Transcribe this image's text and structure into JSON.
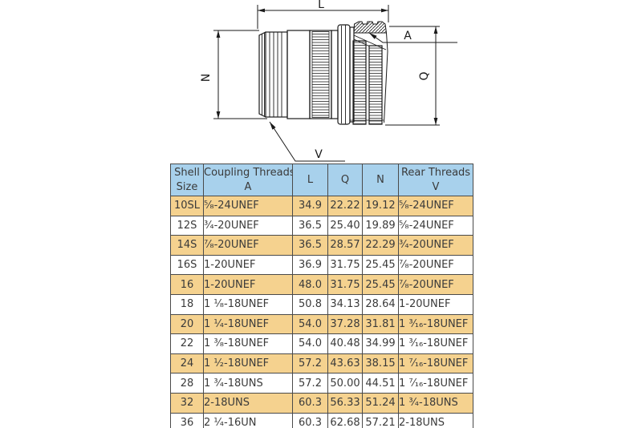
{
  "diagram": {
    "labels": {
      "L": "L",
      "A": "A",
      "N": "N",
      "Q": "Q",
      "V": "V"
    }
  },
  "table": {
    "header": {
      "shell": [
        "Shell",
        "Size"
      ],
      "coupling": [
        "Coupling Threads",
        "A"
      ],
      "l": "L",
      "q": "Q",
      "n": "N",
      "rear": [
        "Rear Threads",
        "V"
      ]
    },
    "rows": [
      {
        "shell": "10SL",
        "coupling": "⁵⁄₈-24UNEF",
        "L": "34.9",
        "Q": "22.22",
        "N": "19.12",
        "rear": "⁵⁄₈-24UNEF"
      },
      {
        "shell": "12S",
        "coupling": "³⁄₄-20UNEF",
        "L": "36.5",
        "Q": "25.40",
        "N": "19.89",
        "rear": "⁵⁄₈-24UNEF"
      },
      {
        "shell": "14S",
        "coupling": "⁷⁄₈-20UNEF",
        "L": "36.5",
        "Q": "28.57",
        "N": "22.29",
        "rear": "³⁄₄-20UNEF"
      },
      {
        "shell": "16S",
        "coupling": "1-20UNEF",
        "L": "36.9",
        "Q": "31.75",
        "N": "25.45",
        "rear": "⁷⁄₈-20UNEF"
      },
      {
        "shell": "16",
        "coupling": "1-20UNEF",
        "L": "48.0",
        "Q": "31.75",
        "N": "25.45",
        "rear": "⁷⁄₈-20UNEF"
      },
      {
        "shell": "18",
        "coupling": "1 ¹⁄₈-18UNEF",
        "L": "50.8",
        "Q": "34.13",
        "N": "28.64",
        "rear": "1-20UNEF"
      },
      {
        "shell": "20",
        "coupling": "1 ¹⁄₄-18UNEF",
        "L": "54.0",
        "Q": "37.28",
        "N": "31.81",
        "rear": "1 ³⁄₁₆-18UNEF"
      },
      {
        "shell": "22",
        "coupling": "1 ³⁄₈-18UNEF",
        "L": "54.0",
        "Q": "40.48",
        "N": "34.99",
        "rear": "1 ³⁄₁₆-18UNEF"
      },
      {
        "shell": "24",
        "coupling": "1 ¹⁄₂-18UNEF",
        "L": "57.2",
        "Q": "43.63",
        "N": "38.15",
        "rear": "1 ⁷⁄₁₆-18UNEF"
      },
      {
        "shell": "28",
        "coupling": "1 ³⁄₄-18UNS",
        "L": "57.2",
        "Q": "50.00",
        "N": "44.51",
        "rear": "1 ⁷⁄₁₆-18UNEF"
      },
      {
        "shell": "32",
        "coupling": "2-18UNS",
        "L": "60.3",
        "Q": "56.33",
        "N": "51.24",
        "rear": "1 ³⁄₄-18UNS"
      },
      {
        "shell": "36",
        "coupling": "2 ¹⁄₄-16UN",
        "L": "60.3",
        "Q": "62.68",
        "N": "57.21",
        "rear": "2-18UNS"
      }
    ]
  },
  "colors": {
    "header_bg": "#a8d1ec",
    "row_alt_bg": "#f5d28f",
    "row_bg": "#ffffff",
    "grid": "#4a4a4a",
    "text": "#3a3a3a",
    "line": "#1a1a1a"
  }
}
